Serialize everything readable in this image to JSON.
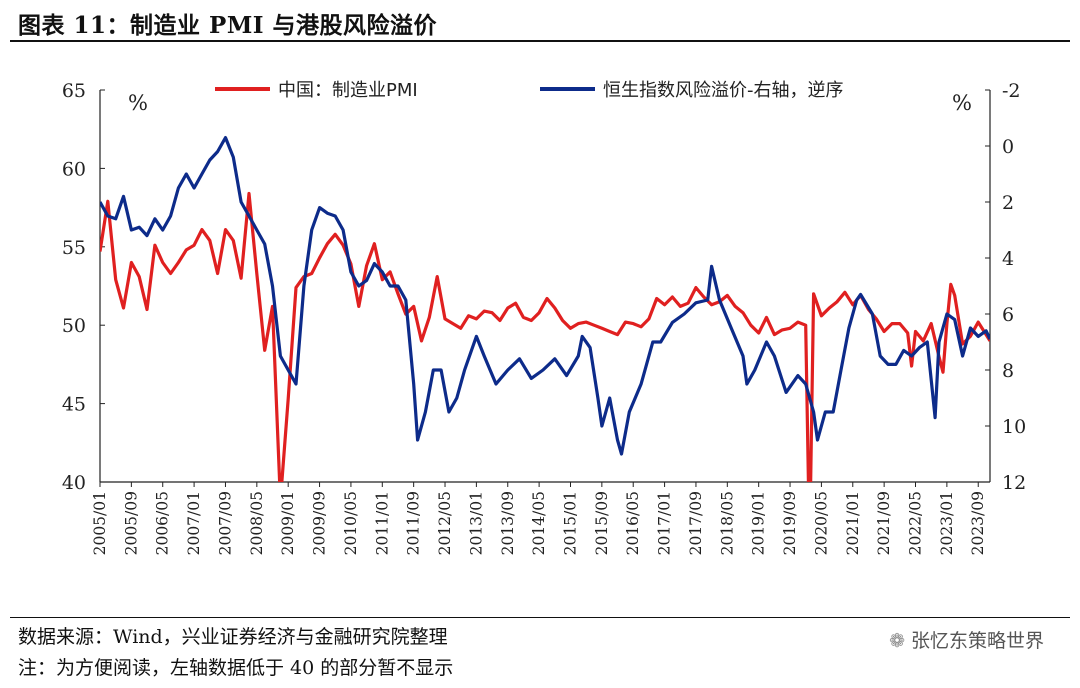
{
  "title": "图表 11：制造业 PMI 与港股风险溢价",
  "source": "数据来源：Wind，兴业证券经济与金融研究院整理",
  "note": "注：为方便阅读，左轴数据低于 40 的部分暂不显示",
  "watermark": "张忆东策略世界",
  "watermark_icon": "wechat-icon",
  "colors": {
    "pmi": "#e02020",
    "erp": "#0d2b8a",
    "axis": "#222222"
  },
  "chart_data": {
    "type": "line",
    "left_axis": {
      "unit": "%",
      "ylim": [
        40,
        65
      ],
      "ticks": [
        40,
        45,
        50,
        55,
        60,
        65
      ]
    },
    "right_axis": {
      "unit": "%",
      "ylim": [
        -2,
        12
      ],
      "reversed": true,
      "ticks": [
        -2,
        0,
        2,
        4,
        6,
        8,
        10,
        12
      ]
    },
    "x_ticks": [
      "2005/01",
      "2005/09",
      "2006/05",
      "2007/01",
      "2007/09",
      "2008/05",
      "2009/01",
      "2009/09",
      "2010/05",
      "2011/01",
      "2011/09",
      "2012/05",
      "2013/01",
      "2013/09",
      "2014/05",
      "2015/01",
      "2015/09",
      "2016/05",
      "2017/01",
      "2017/09",
      "2018/05",
      "2019/01",
      "2019/09",
      "2020/05",
      "2021/01",
      "2021/09",
      "2022/05",
      "2023/01",
      "2023/09"
    ],
    "x_range": [
      "2005/01",
      "2023/12"
    ],
    "legend_position": "top",
    "grid": false,
    "series": [
      {
        "name": "中国：制造业PMI",
        "axis": "left",
        "color": "#e02020",
        "points": [
          [
            "2005/01",
            54.7
          ],
          [
            "2005/03",
            57.9
          ],
          [
            "2005/05",
            52.9
          ],
          [
            "2005/07",
            51.1
          ],
          [
            "2005/09",
            54.0
          ],
          [
            "2005/11",
            53.1
          ],
          [
            "2006/01",
            51.0
          ],
          [
            "2006/03",
            55.1
          ],
          [
            "2006/05",
            54.0
          ],
          [
            "2006/07",
            53.3
          ],
          [
            "2006/09",
            54.0
          ],
          [
            "2006/11",
            54.8
          ],
          [
            "2007/01",
            55.1
          ],
          [
            "2007/03",
            56.1
          ],
          [
            "2007/05",
            55.4
          ],
          [
            "2007/07",
            53.3
          ],
          [
            "2007/09",
            56.1
          ],
          [
            "2007/11",
            55.4
          ],
          [
            "2008/01",
            53.0
          ],
          [
            "2008/03",
            58.4
          ],
          [
            "2008/05",
            53.3
          ],
          [
            "2008/07",
            48.4
          ],
          [
            "2008/09",
            51.2
          ],
          [
            "2008/11",
            38.8
          ],
          [
            "2009/01",
            45.3
          ],
          [
            "2009/03",
            52.4
          ],
          [
            "2009/05",
            53.1
          ],
          [
            "2009/07",
            53.3
          ],
          [
            "2009/09",
            54.3
          ],
          [
            "2009/11",
            55.2
          ],
          [
            "2010/01",
            55.8
          ],
          [
            "2010/03",
            55.1
          ],
          [
            "2010/05",
            53.9
          ],
          [
            "2010/07",
            51.2
          ],
          [
            "2010/09",
            53.8
          ],
          [
            "2010/11",
            55.2
          ],
          [
            "2011/01",
            52.9
          ],
          [
            "2011/03",
            53.4
          ],
          [
            "2011/05",
            52.0
          ],
          [
            "2011/07",
            50.7
          ],
          [
            "2011/09",
            51.2
          ],
          [
            "2011/11",
            49.0
          ],
          [
            "2012/01",
            50.5
          ],
          [
            "2012/03",
            53.1
          ],
          [
            "2012/05",
            50.4
          ],
          [
            "2012/07",
            50.1
          ],
          [
            "2012/09",
            49.8
          ],
          [
            "2012/11",
            50.6
          ],
          [
            "2013/01",
            50.4
          ],
          [
            "2013/03",
            50.9
          ],
          [
            "2013/05",
            50.8
          ],
          [
            "2013/07",
            50.3
          ],
          [
            "2013/09",
            51.1
          ],
          [
            "2013/11",
            51.4
          ],
          [
            "2014/01",
            50.5
          ],
          [
            "2014/03",
            50.3
          ],
          [
            "2014/05",
            50.8
          ],
          [
            "2014/07",
            51.7
          ],
          [
            "2014/09",
            51.1
          ],
          [
            "2014/11",
            50.3
          ],
          [
            "2015/01",
            49.8
          ],
          [
            "2015/03",
            50.1
          ],
          [
            "2015/05",
            50.2
          ],
          [
            "2015/07",
            50.0
          ],
          [
            "2015/09",
            49.8
          ],
          [
            "2015/11",
            49.6
          ],
          [
            "2016/01",
            49.4
          ],
          [
            "2016/03",
            50.2
          ],
          [
            "2016/05",
            50.1
          ],
          [
            "2016/07",
            49.9
          ],
          [
            "2016/09",
            50.4
          ],
          [
            "2016/11",
            51.7
          ],
          [
            "2017/01",
            51.3
          ],
          [
            "2017/03",
            51.8
          ],
          [
            "2017/05",
            51.2
          ],
          [
            "2017/07",
            51.4
          ],
          [
            "2017/09",
            52.4
          ],
          [
            "2017/11",
            51.8
          ],
          [
            "2018/01",
            51.3
          ],
          [
            "2018/03",
            51.5
          ],
          [
            "2018/05",
            51.9
          ],
          [
            "2018/07",
            51.2
          ],
          [
            "2018/09",
            50.8
          ],
          [
            "2018/11",
            50.0
          ],
          [
            "2019/01",
            49.5
          ],
          [
            "2019/03",
            50.5
          ],
          [
            "2019/05",
            49.4
          ],
          [
            "2019/07",
            49.7
          ],
          [
            "2019/09",
            49.8
          ],
          [
            "2019/11",
            50.2
          ],
          [
            "2020/01",
            50.0
          ],
          [
            "2020/02",
            35.7
          ],
          [
            "2020/03",
            52.0
          ],
          [
            "2020/05",
            50.6
          ],
          [
            "2020/07",
            51.1
          ],
          [
            "2020/09",
            51.5
          ],
          [
            "2020/11",
            52.1
          ],
          [
            "2021/01",
            51.3
          ],
          [
            "2021/03",
            51.9
          ],
          [
            "2021/05",
            51.0
          ],
          [
            "2021/07",
            50.4
          ],
          [
            "2021/09",
            49.6
          ],
          [
            "2021/11",
            50.1
          ],
          [
            "2022/01",
            50.1
          ],
          [
            "2022/03",
            49.5
          ],
          [
            "2022/04",
            47.4
          ],
          [
            "2022/05",
            49.6
          ],
          [
            "2022/07",
            49.0
          ],
          [
            "2022/09",
            50.1
          ],
          [
            "2022/11",
            48.0
          ],
          [
            "2022/12",
            47.0
          ],
          [
            "2023/01",
            50.1
          ],
          [
            "2023/02",
            52.6
          ],
          [
            "2023/03",
            51.9
          ],
          [
            "2023/05",
            48.8
          ],
          [
            "2023/07",
            49.3
          ],
          [
            "2023/09",
            50.2
          ],
          [
            "2023/11",
            49.4
          ],
          [
            "2023/12",
            49.0
          ]
        ]
      },
      {
        "name": "恒生指数风险溢价-右轴，逆序",
        "axis": "right",
        "color": "#0d2b8a",
        "points": [
          [
            "2005/01",
            2.0
          ],
          [
            "2005/03",
            2.5
          ],
          [
            "2005/05",
            2.6
          ],
          [
            "2005/07",
            1.8
          ],
          [
            "2005/09",
            3.0
          ],
          [
            "2005/11",
            2.9
          ],
          [
            "2006/01",
            3.2
          ],
          [
            "2006/03",
            2.6
          ],
          [
            "2006/05",
            3.0
          ],
          [
            "2006/07",
            2.5
          ],
          [
            "2006/09",
            1.5
          ],
          [
            "2006/11",
            1.0
          ],
          [
            "2007/01",
            1.5
          ],
          [
            "2007/03",
            1.0
          ],
          [
            "2007/05",
            0.5
          ],
          [
            "2007/07",
            0.2
          ],
          [
            "2007/09",
            -0.3
          ],
          [
            "2007/11",
            0.4
          ],
          [
            "2008/01",
            2.0
          ],
          [
            "2008/03",
            2.5
          ],
          [
            "2008/05",
            3.0
          ],
          [
            "2008/07",
            3.5
          ],
          [
            "2008/09",
            5.0
          ],
          [
            "2008/11",
            7.5
          ],
          [
            "2009/01",
            8.0
          ],
          [
            "2009/03",
            8.5
          ],
          [
            "2009/05",
            5.0
          ],
          [
            "2009/07",
            3.0
          ],
          [
            "2009/09",
            2.2
          ],
          [
            "2009/11",
            2.4
          ],
          [
            "2010/01",
            2.5
          ],
          [
            "2010/03",
            3.0
          ],
          [
            "2010/05",
            4.5
          ],
          [
            "2010/07",
            5.0
          ],
          [
            "2010/09",
            4.8
          ],
          [
            "2010/11",
            4.2
          ],
          [
            "2011/01",
            4.5
          ],
          [
            "2011/03",
            5.0
          ],
          [
            "2011/05",
            5.0
          ],
          [
            "2011/07",
            5.5
          ],
          [
            "2011/09",
            8.5
          ],
          [
            "2011/10",
            10.5
          ],
          [
            "2011/12",
            9.5
          ],
          [
            "2012/02",
            8.0
          ],
          [
            "2012/04",
            8.0
          ],
          [
            "2012/06",
            9.5
          ],
          [
            "2012/08",
            9.0
          ],
          [
            "2012/10",
            8.0
          ],
          [
            "2013/01",
            6.8
          ],
          [
            "2013/03",
            7.5
          ],
          [
            "2013/06",
            8.5
          ],
          [
            "2013/09",
            8.0
          ],
          [
            "2013/12",
            7.6
          ],
          [
            "2014/03",
            8.3
          ],
          [
            "2014/06",
            8.0
          ],
          [
            "2014/09",
            7.6
          ],
          [
            "2014/12",
            8.2
          ],
          [
            "2015/03",
            7.5
          ],
          [
            "2015/04",
            6.8
          ],
          [
            "2015/06",
            7.2
          ],
          [
            "2015/08",
            9.0
          ],
          [
            "2015/09",
            10.0
          ],
          [
            "2015/11",
            9.0
          ],
          [
            "2016/01",
            10.5
          ],
          [
            "2016/02",
            11.0
          ],
          [
            "2016/04",
            9.5
          ],
          [
            "2016/07",
            8.5
          ],
          [
            "2016/10",
            7.0
          ],
          [
            "2016/12",
            7.0
          ],
          [
            "2017/03",
            6.3
          ],
          [
            "2017/06",
            6.0
          ],
          [
            "2017/09",
            5.6
          ],
          [
            "2017/12",
            5.5
          ],
          [
            "2018/01",
            4.3
          ],
          [
            "2018/03",
            5.5
          ],
          [
            "2018/06",
            6.5
          ],
          [
            "2018/09",
            7.5
          ],
          [
            "2018/10",
            8.5
          ],
          [
            "2018/12",
            8.0
          ],
          [
            "2019/03",
            7.0
          ],
          [
            "2019/05",
            7.5
          ],
          [
            "2019/08",
            8.8
          ],
          [
            "2019/11",
            8.2
          ],
          [
            "2020/01",
            8.5
          ],
          [
            "2020/03",
            9.5
          ],
          [
            "2020/04",
            10.5
          ],
          [
            "2020/06",
            9.5
          ],
          [
            "2020/08",
            9.5
          ],
          [
            "2020/10",
            8.0
          ],
          [
            "2020/12",
            6.5
          ],
          [
            "2021/02",
            5.5
          ],
          [
            "2021/03",
            5.3
          ],
          [
            "2021/06",
            6.0
          ],
          [
            "2021/08",
            7.5
          ],
          [
            "2021/10",
            7.8
          ],
          [
            "2021/12",
            7.8
          ],
          [
            "2022/02",
            7.3
          ],
          [
            "2022/04",
            7.5
          ],
          [
            "2022/06",
            7.2
          ],
          [
            "2022/08",
            7.0
          ],
          [
            "2022/10",
            9.7
          ],
          [
            "2022/11",
            7.0
          ],
          [
            "2023/01",
            6.0
          ],
          [
            "2023/03",
            6.2
          ],
          [
            "2023/05",
            7.5
          ],
          [
            "2023/07",
            6.5
          ],
          [
            "2023/09",
            6.8
          ],
          [
            "2023/11",
            6.6
          ],
          [
            "2023/12",
            6.9
          ]
        ]
      }
    ]
  }
}
